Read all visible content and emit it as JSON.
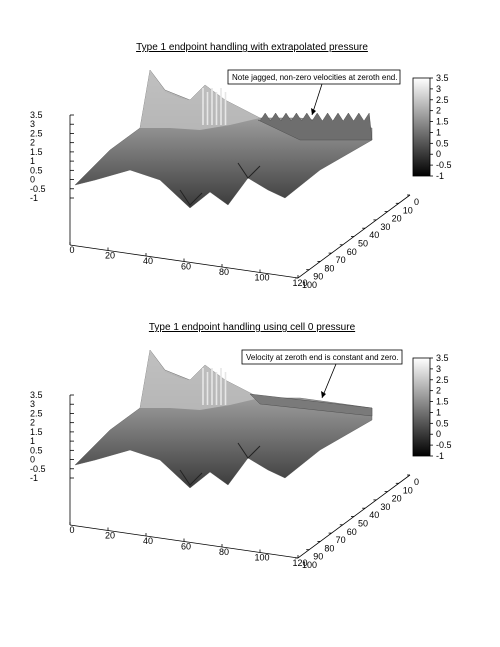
{
  "chart_data": [
    {
      "type": "surface",
      "title": "Type 1 endpoint handling with extrapolated pressure",
      "annotation": "Note jagged, non-zero velocities at zeroth end.",
      "x_ticks": [
        "0",
        "20",
        "40",
        "60",
        "80",
        "100",
        "120"
      ],
      "y_ticks": [
        "0",
        "10",
        "20",
        "30",
        "40",
        "50",
        "60",
        "70",
        "80",
        "90",
        "100"
      ],
      "z_ticks": [
        "3.5",
        "3",
        "2.5",
        "2",
        "1.5",
        "1",
        "0.5",
        "0",
        "-0.5",
        "-1"
      ],
      "colorbar_ticks": [
        "3.5",
        "3",
        "2.5",
        "2",
        "1.5",
        "1",
        "0.5",
        "0",
        "-0.5",
        "-1"
      ],
      "xlim": [
        0,
        120
      ],
      "ylim": [
        0,
        100
      ],
      "zlim": [
        -1,
        3.5
      ],
      "colormap": "grayscale",
      "zeroth_end": "jagged"
    },
    {
      "type": "surface",
      "title": "Type 1 endpoint handling using cell 0 pressure",
      "annotation": "Velocity at zeroth end is constant and zero.",
      "x_ticks": [
        "0",
        "20",
        "40",
        "60",
        "80",
        "100",
        "120"
      ],
      "y_ticks": [
        "0",
        "10",
        "20",
        "30",
        "40",
        "50",
        "60",
        "70",
        "80",
        "90",
        "100"
      ],
      "z_ticks": [
        "3.5",
        "3",
        "2.5",
        "2",
        "1.5",
        "1",
        "0.5",
        "0",
        "-0.5",
        "-1"
      ],
      "colorbar_ticks": [
        "3.5",
        "3",
        "2.5",
        "2",
        "1.5",
        "1",
        "0.5",
        "0",
        "-0.5",
        "-1"
      ],
      "xlim": [
        0,
        120
      ],
      "ylim": [
        0,
        100
      ],
      "zlim": [
        -1,
        3.5
      ],
      "colormap": "grayscale",
      "zeroth_end": "flat"
    }
  ]
}
